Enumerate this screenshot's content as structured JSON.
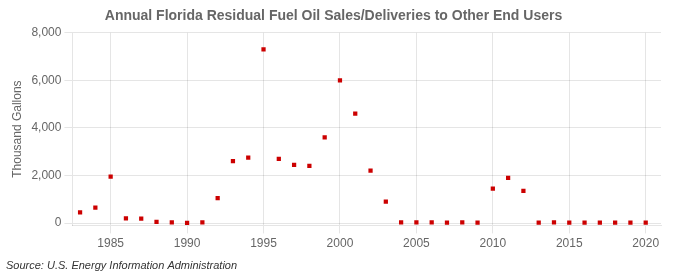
{
  "chart_data": {
    "type": "scatter",
    "title": "Annual Florida Residual Fuel Oil Sales/Deliveries to Other End Users",
    "ylabel": "Thousand Gallons",
    "annotation": "Source: U.S. Energy Information Administration",
    "x": [
      1983,
      1984,
      1985,
      1986,
      1987,
      1988,
      1989,
      1990,
      1991,
      1992,
      1993,
      1994,
      1995,
      1996,
      1997,
      1998,
      1999,
      2000,
      2001,
      2002,
      2003,
      2004,
      2005,
      2006,
      2007,
      2008,
      2009,
      2010,
      2011,
      2012,
      2013,
      2014,
      2015,
      2016,
      2017,
      2018,
      2019,
      2020
    ],
    "values": [
      450,
      650,
      1950,
      200,
      180,
      50,
      30,
      10,
      30,
      1050,
      2600,
      2750,
      7300,
      2700,
      2450,
      2400,
      3600,
      6000,
      4600,
      2200,
      900,
      30,
      30,
      30,
      20,
      30,
      20,
      1450,
      1900,
      1350,
      20,
      30,
      20,
      20,
      20,
      20,
      20,
      20
    ],
    "color": "#cc0000",
    "marker": "square",
    "xlim": [
      1982.5,
      2021
    ],
    "xticks": [
      1985,
      1990,
      1995,
      2000,
      2005,
      2010,
      2015,
      2020
    ],
    "ylim": [
      -100,
      8000
    ],
    "yticks": [
      0,
      {
        "value": 2000,
        "label": "2,000"
      },
      {
        "value": 4000,
        "label": "4,000"
      },
      {
        "value": 6000,
        "label": "6,000"
      },
      {
        "value": 8000,
        "label": "8,000"
      }
    ],
    "grid": true
  }
}
